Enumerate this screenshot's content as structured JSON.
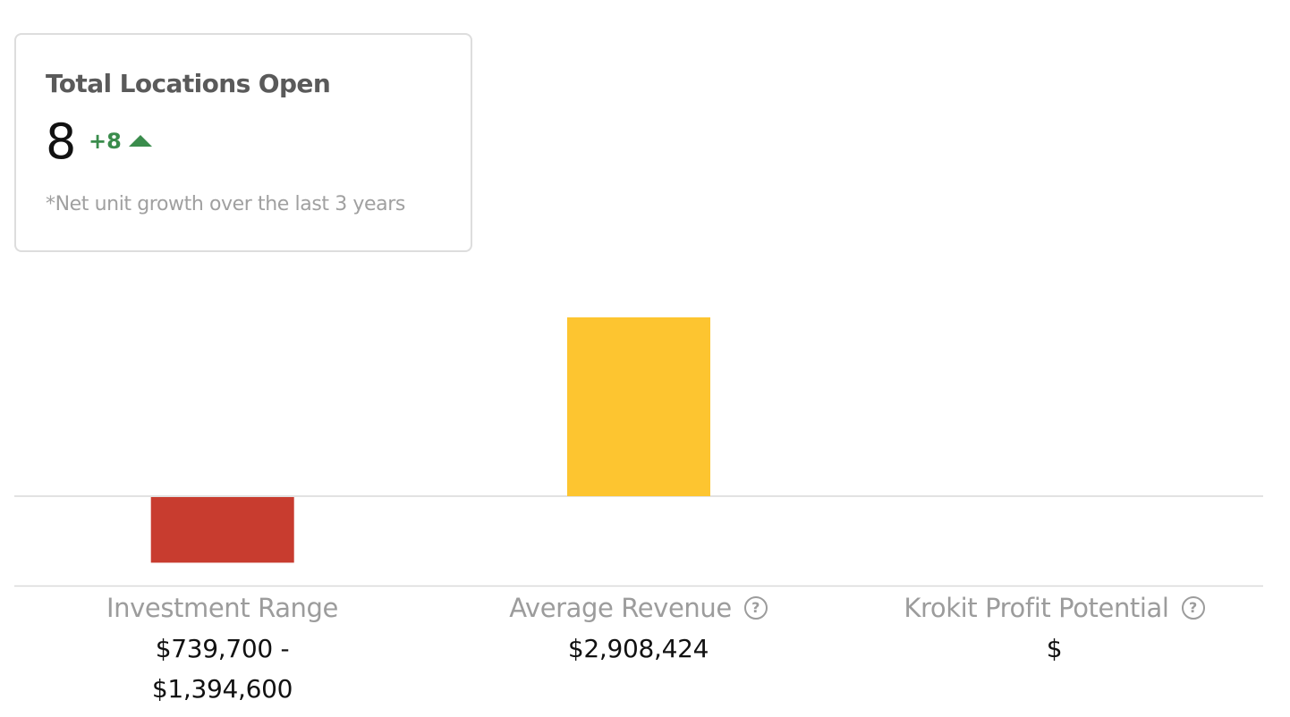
{
  "card": {
    "title": "Total Locations Open",
    "value": "8",
    "change": "+8",
    "change_icon": "triangle-up-icon",
    "footnote": "*Net unit growth over the last 3 years",
    "colors": {
      "positive": "#3a8c4c"
    }
  },
  "metrics": [
    {
      "label": "Investment Range",
      "value": "$739,700 - $1,394,600",
      "has_help": false
    },
    {
      "label": "Average Revenue",
      "value": "$2,908,424",
      "has_help": true
    },
    {
      "label": "Krokit Profit Potential",
      "value": "$",
      "has_help": true
    }
  ],
  "chart_data": {
    "type": "bar",
    "categories": [
      "Investment Range",
      "Average Revenue",
      "Krokit Profit Potential"
    ],
    "values": [
      -1066700,
      2908424,
      0
    ],
    "colors": [
      "#c83c2f",
      "#fdc530",
      "#ffffff"
    ],
    "ylim": [
      -1454212,
      3635530
    ],
    "grid": false,
    "title": "",
    "xlabel": "",
    "ylabel": ""
  }
}
